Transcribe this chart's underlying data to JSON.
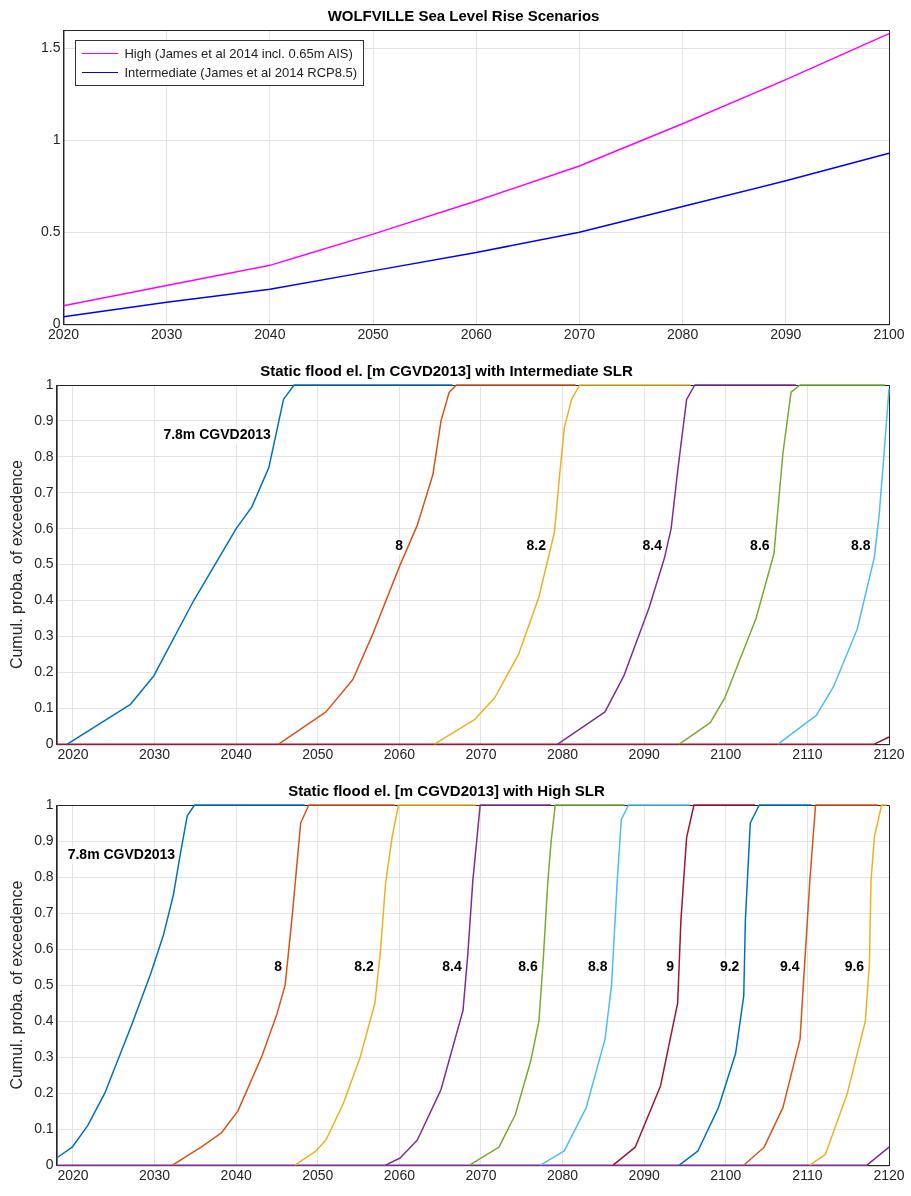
{
  "chart_data": [
    {
      "type": "line",
      "title": "WOLFVILLE Sea Level Rise Scenarios",
      "x": [
        2020,
        2030,
        2040,
        2050,
        2060,
        2070,
        2080,
        2090,
        2100
      ],
      "xlim": [
        2020,
        2100
      ],
      "xticks": [
        2020,
        2030,
        2040,
        2050,
        2060,
        2070,
        2080,
        2090,
        2100
      ],
      "ylim": [
        0,
        1.6
      ],
      "yticks": [
        0,
        0.5,
        1,
        1.5
      ],
      "grid": true,
      "legend": "top left",
      "marker": "none",
      "line_style": "solid",
      "series": [
        {
          "name": "High (James et al 2014 incl. 0.65m AIS)",
          "color": "#ff00ff",
          "values": [
            0.1,
            0.21,
            0.32,
            0.49,
            0.67,
            0.86,
            1.09,
            1.33,
            1.58
          ]
        },
        {
          "name": "Intermediate (James et al 2014 RCP8.5)",
          "color": "#0000ff",
          "values": [
            0.04,
            0.12,
            0.19,
            0.29,
            0.39,
            0.5,
            0.64,
            0.78,
            0.93
          ]
        }
      ]
    },
    {
      "type": "line",
      "title": "Static flood el. [m CGVD2013] with Intermediate SLR",
      "ylabel": "Cumul. proba. of exceedence",
      "xlim": [
        2018,
        2120
      ],
      "xticks": [
        2020,
        2030,
        2040,
        2050,
        2060,
        2070,
        2080,
        2090,
        2100,
        2110,
        2120
      ],
      "ylim": [
        0,
        1
      ],
      "yticks": [
        0,
        0.1,
        0.2,
        0.3,
        0.4,
        0.5,
        0.6,
        0.7,
        0.8,
        0.9,
        1
      ],
      "grid": true,
      "legend": false,
      "marker": "none",
      "line_style": "solid",
      "series": [
        {
          "name": "7.8m CGVD2013",
          "color": "#0072bd",
          "x": [
            2019.3,
            2027,
            2029.9,
            2034.8,
            2040,
            2041.9,
            2044,
            2045.8,
            2047.1,
            2066.5
          ],
          "values": [
            0,
            0.11,
            0.19,
            0.4,
            0.6,
            0.66,
            0.77,
            0.96,
            1,
            1
          ]
        },
        {
          "name": "8",
          "color": "#d95319",
          "x": [
            2045.2,
            2051,
            2054.3,
            2056.8,
            2060.1,
            2062.2,
            2064.1,
            2065.1,
            2066.1,
            2067,
            2081.6
          ],
          "values": [
            0,
            0.09,
            0.18,
            0.31,
            0.5,
            0.61,
            0.75,
            0.9,
            0.98,
            1,
            1
          ]
        },
        {
          "name": "8.2",
          "color": "#edb120",
          "x": [
            2064.3,
            2069.3,
            2071.7,
            2074.6,
            2077.1,
            2079,
            2079.6,
            2080.2,
            2081.1,
            2082.1,
            2095.7
          ],
          "values": [
            0,
            0.07,
            0.13,
            0.25,
            0.41,
            0.59,
            0.74,
            0.88,
            0.96,
            1,
            1
          ]
        },
        {
          "name": "8.4",
          "color": "#7e2f8e",
          "x": [
            2079.4,
            2083.9,
            2085.2,
            2087.5,
            2090.6,
            2092.5,
            2093.3,
            2094.1,
            2095.2,
            2096.2,
            2108.6
          ],
          "values": [
            0,
            0.07,
            0.09,
            0.19,
            0.38,
            0.52,
            0.6,
            0.76,
            0.96,
            1,
            1
          ]
        },
        {
          "name": "8.6",
          "color": "#77ac30",
          "x": [
            2094.3,
            2098.1,
            2099.9,
            2103.7,
            2105.9,
            2107,
            2108,
            2109.1,
            2119.5
          ],
          "values": [
            0,
            0.06,
            0.13,
            0.35,
            0.53,
            0.81,
            0.98,
            1,
            1
          ]
        },
        {
          "name": "8.8",
          "color": "#4dbeee",
          "x": [
            2106.4,
            2109.9,
            2111.1,
            2113.2,
            2116.1,
            2118.2,
            2118.8,
            2119.4,
            2120
          ],
          "values": [
            0,
            0.06,
            0.08,
            0.16,
            0.32,
            0.52,
            0.64,
            0.81,
            0.99
          ]
        },
        {
          "color": "#a2142f",
          "x": [
            2018,
            2118.2,
            2120
          ],
          "values": [
            0,
            0,
            0.02
          ]
        }
      ]
    },
    {
      "type": "line",
      "title": "Static flood el. [m CGVD2013] with High SLR",
      "ylabel": "Cumul. proba. of exceedence",
      "xlim": [
        2018,
        2120
      ],
      "xticks": [
        2020,
        2030,
        2040,
        2050,
        2060,
        2070,
        2080,
        2090,
        2100,
        2110,
        2120
      ],
      "ylim": [
        0,
        1
      ],
      "yticks": [
        0,
        0.1,
        0.2,
        0.3,
        0.4,
        0.5,
        0.6,
        0.7,
        0.8,
        0.9,
        1
      ],
      "grid": true,
      "legend": false,
      "marker": "none",
      "line_style": "solid",
      "series": [
        {
          "name": "7.8m CGVD2013",
          "color": "#0072bd",
          "x": [
            2018,
            2019.9,
            2021.8,
            2023.9,
            2027.2,
            2029.5,
            2031.1,
            2032.3,
            2033.2,
            2034,
            2034.9,
            2048.4
          ],
          "values": [
            0.02,
            0.05,
            0.11,
            0.2,
            0.39,
            0.53,
            0.64,
            0.75,
            0.87,
            0.97,
            1,
            1
          ]
        },
        {
          "name": "8",
          "color": "#d95319",
          "x": [
            2032.2,
            2035.7,
            2038.2,
            2040.2,
            2043.1,
            2045,
            2046,
            2046.9,
            2047.9,
            2048.9,
            2059.4
          ],
          "values": [
            0,
            0.05,
            0.09,
            0.15,
            0.3,
            0.42,
            0.5,
            0.7,
            0.95,
            1,
            1
          ]
        },
        {
          "name": "8.2",
          "color": "#edb120",
          "x": [
            2047.2,
            2049.8,
            2051,
            2053.1,
            2055.2,
            2057,
            2057.7,
            2058.3,
            2059.1,
            2059.9,
            2069.4
          ],
          "values": [
            0,
            0.04,
            0.07,
            0.17,
            0.3,
            0.45,
            0.6,
            0.78,
            0.91,
            1,
            1
          ]
        },
        {
          "name": "8.4",
          "color": "#7e2f8e",
          "x": [
            2058.3,
            2060.1,
            2062.2,
            2065.1,
            2067.8,
            2068.4,
            2069,
            2069.9,
            2078.6
          ],
          "values": [
            0,
            0.02,
            0.07,
            0.21,
            0.43,
            0.59,
            0.79,
            1,
            1
          ]
        },
        {
          "name": "8.6",
          "color": "#77ac30",
          "x": [
            2068.6,
            2072.2,
            2074.2,
            2076.1,
            2077.1,
            2077.6,
            2078.2,
            2078.6,
            2079.1,
            2087.6
          ],
          "values": [
            0,
            0.05,
            0.14,
            0.29,
            0.4,
            0.56,
            0.79,
            0.9,
            1,
            1
          ]
        },
        {
          "name": "8.8",
          "color": "#4dbeee",
          "x": [
            2077.3,
            2080.2,
            2082.9,
            2085.2,
            2086,
            2086.7,
            2087.2,
            2088.1,
            2095.6
          ],
          "values": [
            0,
            0.04,
            0.16,
            0.35,
            0.5,
            0.79,
            0.96,
            1,
            1
          ]
        },
        {
          "name": "9",
          "color": "#a2142f",
          "x": [
            2086.2,
            2088.9,
            2092,
            2094.1,
            2094.5,
            2095.2,
            2096.1,
            2103.6
          ],
          "values": [
            0,
            0.05,
            0.22,
            0.45,
            0.68,
            0.91,
            1,
            1
          ]
        },
        {
          "name": "9.2",
          "color": "#0072bd",
          "x": [
            2094.3,
            2096.6,
            2099.1,
            2101.2,
            2102.2,
            2102.4,
            2103,
            2104.1,
            2110.5
          ],
          "values": [
            0,
            0.04,
            0.16,
            0.31,
            0.47,
            0.68,
            0.95,
            1,
            1
          ]
        },
        {
          "name": "9.4",
          "color": "#d95319",
          "x": [
            2102.2,
            2104.7,
            2107,
            2109.1,
            2109.5,
            2110.3,
            2111,
            2118.6
          ],
          "values": [
            0,
            0.05,
            0.16,
            0.35,
            0.5,
            0.79,
            1,
            1
          ]
        },
        {
          "name": "9.6",
          "color": "#edb120",
          "x": [
            2110.3,
            2112.2,
            2114.9,
            2117.1,
            2117.6,
            2117.8,
            2118.2,
            2119.1,
            2119.7
          ],
          "values": [
            0,
            0.03,
            0.2,
            0.4,
            0.56,
            0.79,
            0.91,
            1,
            1
          ]
        },
        {
          "color": "#7e2f8e",
          "x": [
            2018,
            2117.3,
            2120
          ],
          "values": [
            0,
            0,
            0.05
          ]
        }
      ]
    }
  ]
}
